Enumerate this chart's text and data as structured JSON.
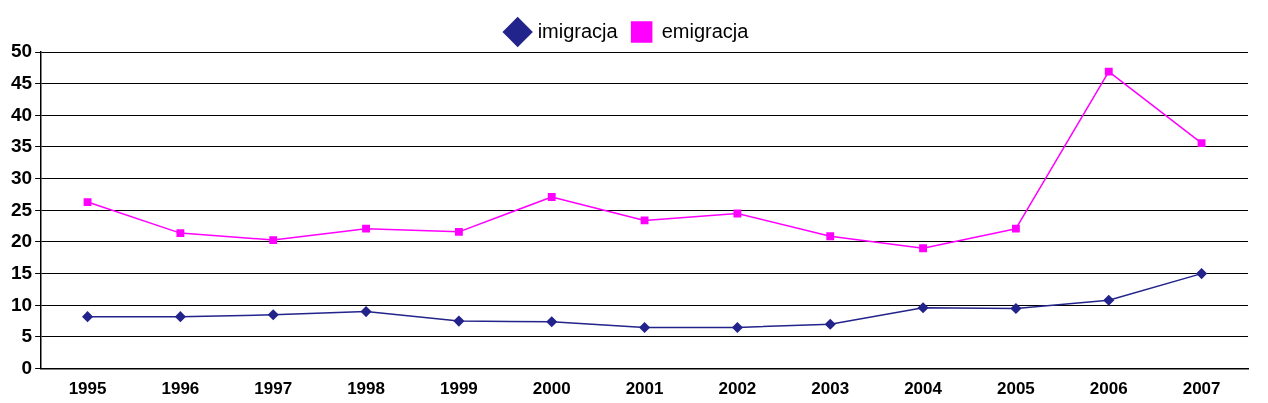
{
  "chart_data": {
    "type": "line",
    "categories": [
      "1995",
      "1996",
      "1997",
      "1998",
      "1999",
      "2000",
      "2001",
      "2002",
      "2003",
      "2004",
      "2005",
      "2006",
      "2007"
    ],
    "series": [
      {
        "name": "imigracja",
        "color": "#23238c",
        "marker": "diamond",
        "values": [
          8.2,
          8.2,
          8.5,
          9.0,
          7.5,
          7.4,
          6.5,
          6.5,
          7.0,
          9.6,
          9.5,
          10.8,
          15.0
        ]
      },
      {
        "name": "emigracja",
        "color": "#ff00ff",
        "marker": "square",
        "values": [
          26.3,
          21.4,
          20.3,
          22.1,
          21.6,
          27.1,
          23.4,
          24.5,
          20.9,
          19.0,
          22.1,
          46.9,
          35.6
        ]
      }
    ],
    "ylim": [
      0,
      50
    ],
    "yticks": [
      0,
      5,
      10,
      15,
      20,
      25,
      30,
      35,
      40,
      45,
      50
    ],
    "grid": "y",
    "legend": "top",
    "line_style": "solid"
  }
}
